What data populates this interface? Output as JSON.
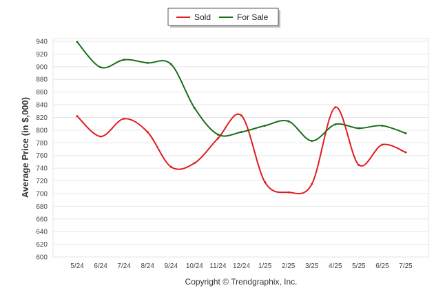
{
  "chart_data": {
    "type": "line",
    "title": "",
    "xlabel": "",
    "ylabel": "Average Price (in $,000)",
    "ylim": [
      600,
      940
    ],
    "ytick_step": 20,
    "grid": true,
    "legend": "top-center",
    "categories": [
      "5/24",
      "6/24",
      "7/24",
      "8/24",
      "9/24",
      "10/24",
      "11/24",
      "12/24",
      "1/25",
      "2/25",
      "3/25",
      "4/25",
      "5/25",
      "6/25",
      "7/25"
    ],
    "series": [
      {
        "name": "Sold",
        "color": "#e31a1c",
        "values": [
          822,
          790,
          818,
          797,
          742,
          748,
          787,
          823,
          718,
          702,
          715,
          836,
          745,
          777,
          765
        ]
      },
      {
        "name": "For Sale",
        "color": "#1a6e1a",
        "values": [
          939,
          899,
          911,
          906,
          904,
          835,
          793,
          797,
          807,
          814,
          783,
          809,
          803,
          807,
          795
        ]
      }
    ],
    "footer": "Copyright © Trendgraphix, Inc."
  }
}
